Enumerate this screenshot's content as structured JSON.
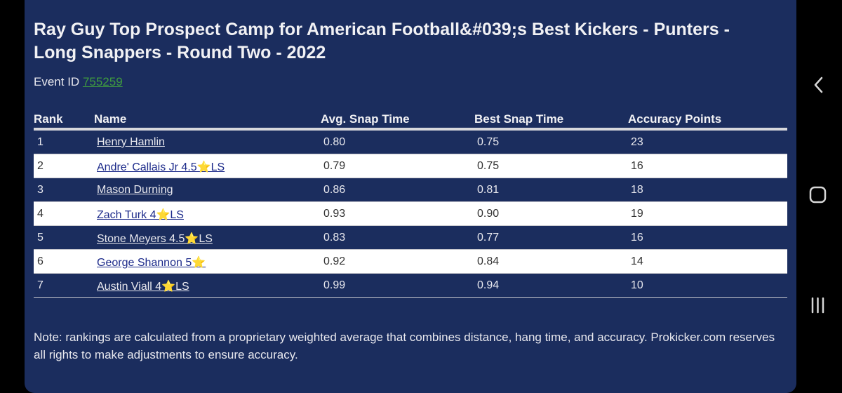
{
  "page": {
    "title": "Ray Guy Top Prospect Camp for American Football&#039;s Best Kickers - Punters - Long Snappers - Round Two - 2022",
    "event_label": "Event ID",
    "event_id": "755259"
  },
  "table": {
    "headers": {
      "rank": "Rank",
      "name": "Name",
      "avg": "Avg. Snap Time",
      "best": "Best Snap Time",
      "acc": "Accuracy Points"
    },
    "rows": [
      {
        "rank": "1",
        "name": "Henry Hamlin",
        "avg": "0.80",
        "best": "0.75",
        "acc": "23"
      },
      {
        "rank": "2",
        "name": "Andre' Callais Jr 4.5⭐LS",
        "avg": "0.79",
        "best": "0.75",
        "acc": "16"
      },
      {
        "rank": "3",
        "name": "Mason Durning",
        "avg": "0.86",
        "best": "0.81",
        "acc": "18"
      },
      {
        "rank": "4",
        "name": "Zach Turk 4⭐LS",
        "avg": "0.93",
        "best": "0.90",
        "acc": "19"
      },
      {
        "rank": "5",
        "name": "Stone Meyers 4.5⭐LS",
        "avg": "0.83",
        "best": "0.77",
        "acc": "16"
      },
      {
        "rank": "6",
        "name": "George Shannon 5⭐",
        "avg": "0.92",
        "best": "0.84",
        "acc": "14"
      },
      {
        "rank": "7",
        "name": "Austin Viall 4⭐LS",
        "avg": "0.99",
        "best": "0.94",
        "acc": "10"
      }
    ]
  },
  "note": "Note: rankings are calculated from a proprietary weighted average that combines distance, hang time, and accuracy. Prokicker.com reserves all rights to make adjustments to ensure accuracy.",
  "nav": {
    "back_icon": "chevron-left-icon",
    "home_icon": "rounded-square-icon",
    "recent_icon": "three-bars-icon"
  },
  "colors": {
    "panel": "#1b2d5e",
    "link_green": "#3f9c3f",
    "alt_row": "#ffffff",
    "alt_link": "#1c2a8a"
  }
}
